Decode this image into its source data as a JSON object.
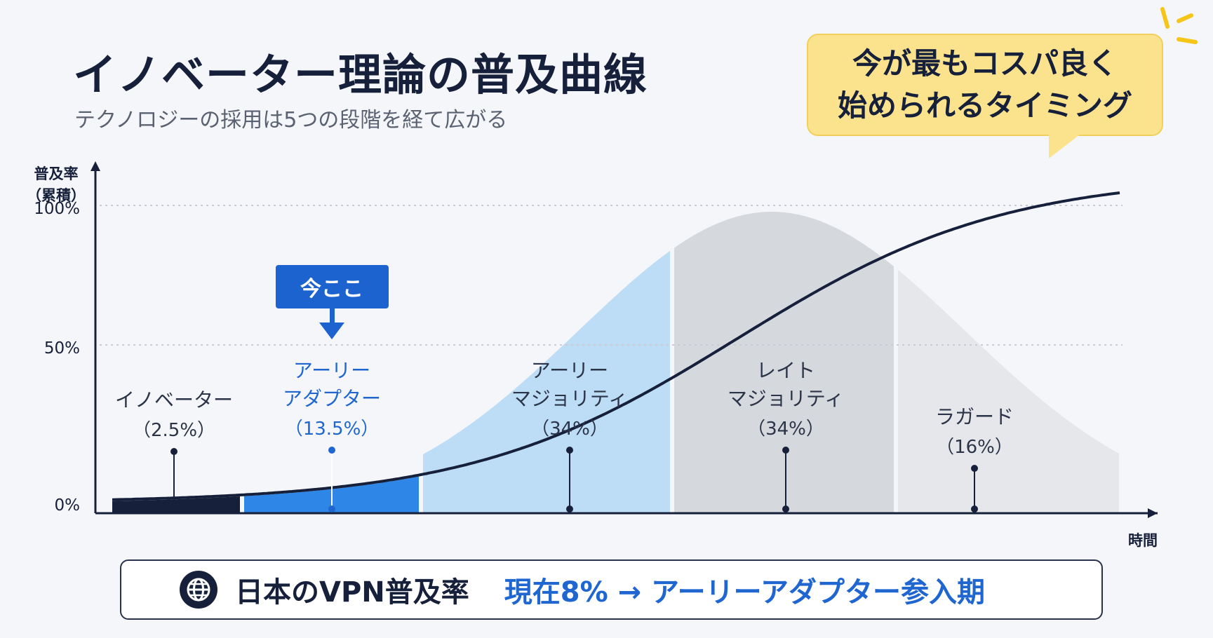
{
  "title": "イノベーター理論の普及曲線",
  "subtitle": "テクノロジーの採用は5つの段階を経て広がる",
  "callout": {
    "line1": "今が最もコスパ良く",
    "line2": "始められるタイミング"
  },
  "colors": {
    "navy": "#16203a",
    "blue": "#2e86e6",
    "light_blue": "#bdddf7",
    "gray": "#d5d8dd",
    "light_gray": "#e6e7ea",
    "accent_text": "#1f66d1",
    "callout_bg": "#fbe38e"
  },
  "chart_data": {
    "type": "area",
    "ylabel": "普及率\n（累積）",
    "xlabel": "時間",
    "yticks": [
      "100%",
      "50%",
      "0%"
    ],
    "segments": [
      {
        "line1": "イノベーター",
        "line2": "",
        "pct_label": "（2.5%）",
        "share": 2.5,
        "color": "#16203a"
      },
      {
        "line1": "アーリー",
        "line2": "アダプター",
        "pct_label": "（13.5%）",
        "share": 13.5,
        "color": "#2e86e6"
      },
      {
        "line1": "アーリー",
        "line2": "マジョリティ",
        "pct_label": "（34%）",
        "share": 34,
        "color": "#bdddf7"
      },
      {
        "line1": "レイト",
        "line2": "マジョリティ",
        "pct_label": "（34%）",
        "share": 34,
        "color": "#d5d8dd"
      },
      {
        "line1": "ラガード",
        "line2": "",
        "pct_label": "（16%）",
        "share": 16,
        "color": "#e6e7ea"
      }
    ],
    "current_marker": {
      "label": "今ここ",
      "segment": "アーリーアダプター"
    },
    "current_value_pct": 8
  },
  "banner": {
    "icon": "globe-icon",
    "label": "日本のVPN普及率",
    "status": "現在8% → アーリーアダプター参入期"
  }
}
